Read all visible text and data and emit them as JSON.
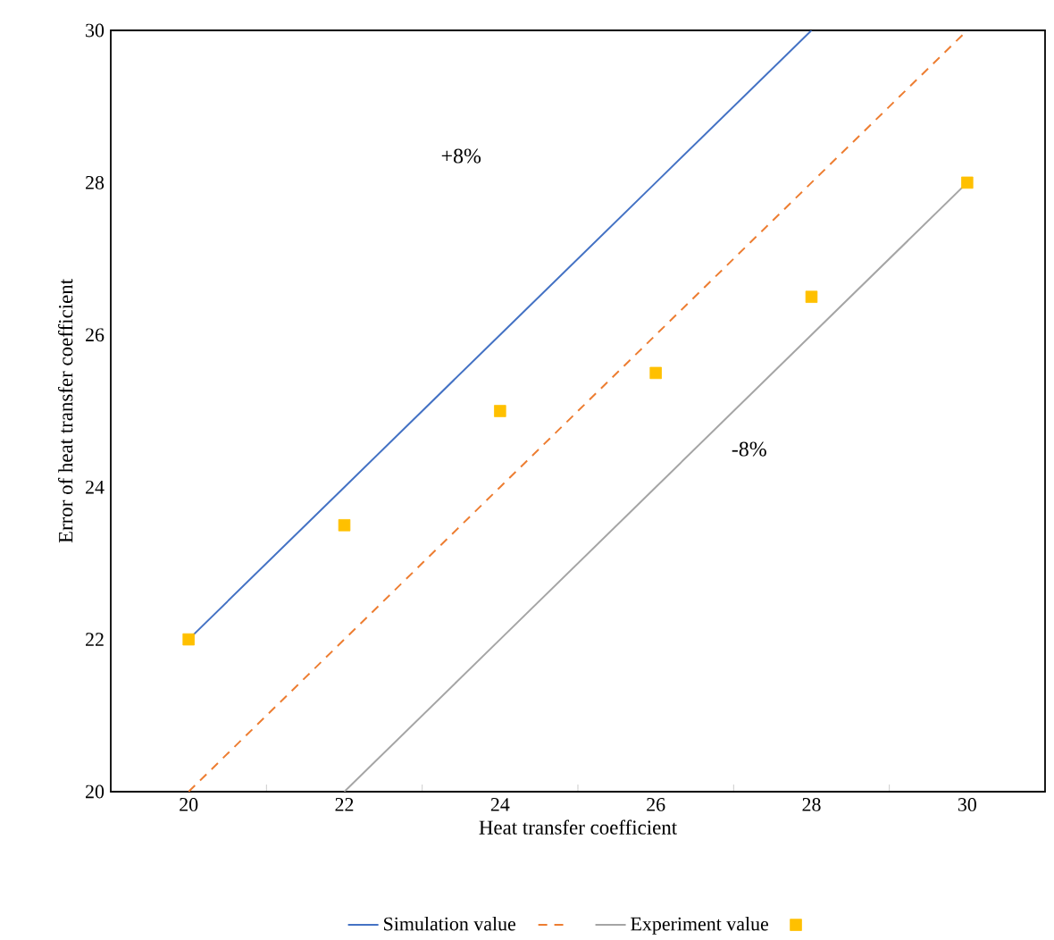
{
  "chart_data": {
    "type": "line",
    "xlabel": "Heat transfer coefficient",
    "ylabel": "Error of heat transfer coefficient",
    "categories": [
      "20",
      "22",
      "24",
      "26",
      "28",
      "30"
    ],
    "ylim": [
      20,
      30
    ],
    "yticks": [
      20,
      22,
      24,
      26,
      28,
      30
    ],
    "legend": "bottom",
    "grid": false,
    "annotations": [
      "+8%",
      "-8%"
    ],
    "series": [
      {
        "name": "Simulation value",
        "color": "#4472c4",
        "line_style": "solid",
        "values": [
          22,
          24,
          26,
          28,
          30,
          null
        ]
      },
      {
        "color": "#ed7d31",
        "line_style": "dashed",
        "values": [
          20,
          22,
          24,
          26,
          28,
          30
        ]
      },
      {
        "name": "Experiment value",
        "color": "#a5a5a5",
        "line_style": "solid",
        "values": [
          null,
          20,
          22,
          24,
          26,
          28
        ]
      },
      {
        "type": "scatter",
        "marker": "square",
        "color": "#ffc000",
        "values": [
          22,
          23.5,
          25,
          25.5,
          26.5,
          28
        ]
      }
    ]
  }
}
